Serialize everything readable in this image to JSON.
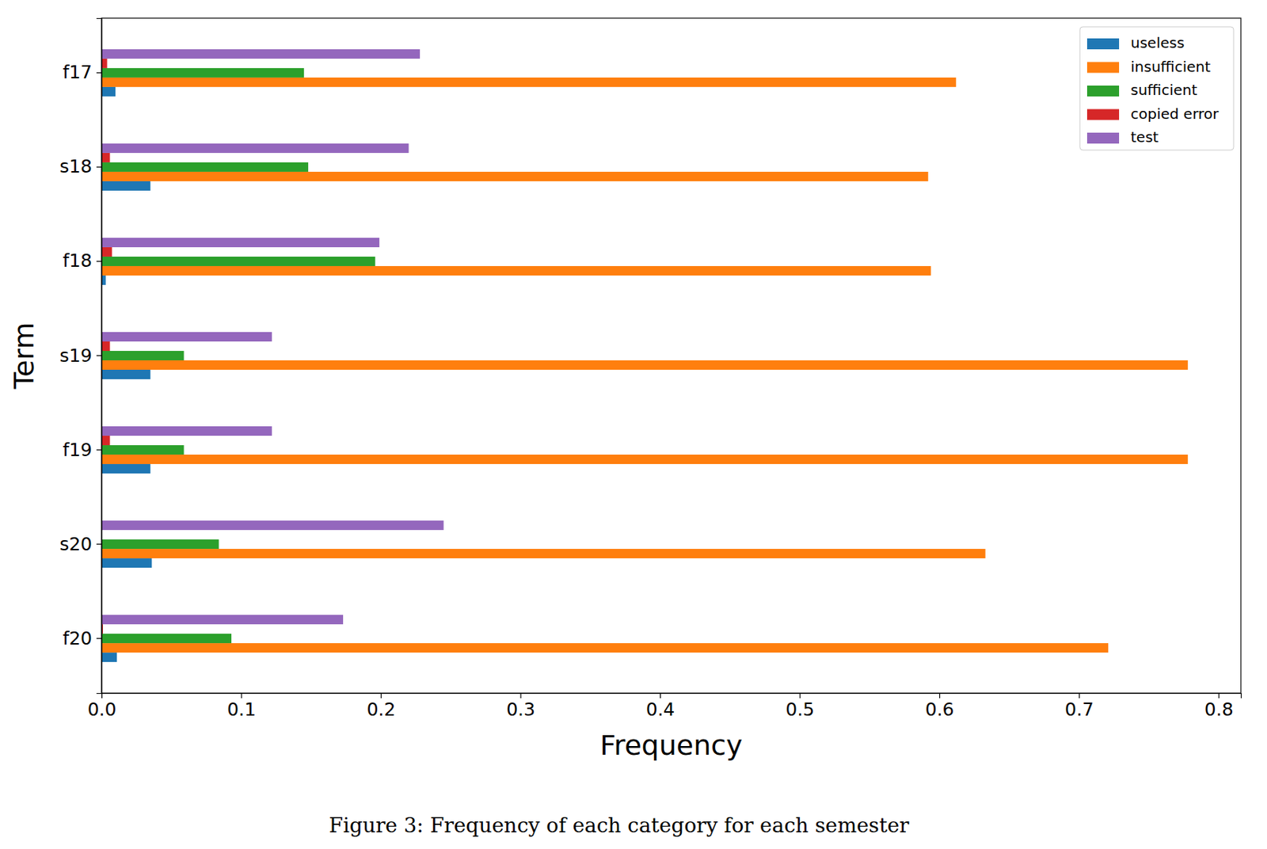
{
  "chart_data": {
    "type": "bar",
    "orientation": "horizontal",
    "caption": "Figure 3: Frequency of each category for each semester",
    "x_label": "Frequency",
    "y_label": "Term",
    "categories": [
      "f17",
      "s18",
      "f18",
      "s19",
      "f19",
      "s20",
      "f20"
    ],
    "series": [
      {
        "name": "useless",
        "color": "#1f77b4",
        "values": [
          0.01,
          0.035,
          0.003,
          0.035,
          0.035,
          0.036,
          0.011
        ]
      },
      {
        "name": "insufficient",
        "color": "#ff7f0e",
        "values": [
          0.612,
          0.592,
          0.594,
          0.778,
          0.778,
          0.633,
          0.721
        ]
      },
      {
        "name": "sufficient",
        "color": "#2ca02c",
        "values": [
          0.145,
          0.148,
          0.196,
          0.059,
          0.059,
          0.084,
          0.093
        ]
      },
      {
        "name": "copied error",
        "color": "#d62728",
        "values": [
          0.004,
          0.006,
          0.0075,
          0.006,
          0.006,
          0,
          0.001
        ]
      },
      {
        "name": "test",
        "color": "#9467bd",
        "values": [
          0.228,
          0.22,
          0.199,
          0.122,
          0.122,
          0.245,
          0.173
        ]
      }
    ],
    "xlim": [
      0,
      0.816
    ],
    "xticks": [
      {
        "value": 0,
        "label": "0.0"
      },
      0.1,
      0.2,
      0.3,
      0.4,
      0.5,
      0.6,
      0.7,
      0.8
    ],
    "grid": false,
    "legend": "top-right"
  }
}
